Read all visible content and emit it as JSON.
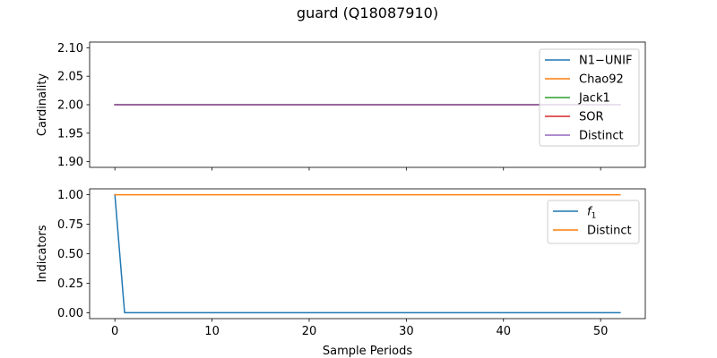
{
  "title": "guard (Q18087910)",
  "colors": {
    "blue": "#1f77b4",
    "orange": "#ff7f0e",
    "green": "#2ca02c",
    "red": "#d62728",
    "purple": "#9467bd"
  },
  "chart_data": [
    {
      "type": "line",
      "ylabel": "Cardinality",
      "xlabel": "",
      "xlim": [
        -2.6,
        54.6
      ],
      "ylim": [
        1.89,
        2.11
      ],
      "xticks": [
        0,
        10,
        20,
        30,
        40,
        50
      ],
      "xtick_labels_visible": false,
      "yticks": [
        1.9,
        1.95,
        2.0,
        2.05,
        2.1
      ],
      "ytick_labels": [
        "1.90",
        "1.95",
        "2.00",
        "2.05",
        "2.10"
      ],
      "legend_position": "top-right",
      "series": [
        {
          "name": "N1−UNIF",
          "color": "#1f77b4",
          "segments": [
            {
              "x": [
                0,
                52
              ],
              "y": [
                2.0,
                2.0
              ]
            }
          ]
        },
        {
          "name": "Chao92",
          "color": "#ff7f0e",
          "segments": [
            {
              "x": [
                0,
                52
              ],
              "y": [
                2.0,
                2.0
              ]
            }
          ]
        },
        {
          "name": "Jack1",
          "color": "#2ca02c",
          "segments": [
            {
              "x": [
                0,
                52
              ],
              "y": [
                2.0,
                2.0
              ]
            }
          ]
        },
        {
          "name": "SOR",
          "color": "#d62728",
          "segments": [
            {
              "x": [
                0,
                52
              ],
              "y": [
                2.0,
                2.0
              ]
            }
          ]
        },
        {
          "name": "Distinct",
          "color": "#9467bd",
          "segments": [
            {
              "x": [
                0,
                52
              ],
              "y": [
                2.0,
                2.0
              ]
            }
          ]
        }
      ]
    },
    {
      "type": "line",
      "ylabel": "Indicators",
      "xlabel": "Sample Periods",
      "xlim": [
        -2.6,
        54.6
      ],
      "ylim": [
        -0.05,
        1.05
      ],
      "xticks": [
        0,
        10,
        20,
        30,
        40,
        50
      ],
      "xtick_labels": [
        "0",
        "10",
        "20",
        "30",
        "40",
        "50"
      ],
      "yticks": [
        0.0,
        0.25,
        0.5,
        0.75,
        1.0
      ],
      "ytick_labels": [
        "0.00",
        "0.25",
        "0.50",
        "0.75",
        "1.00"
      ],
      "legend_position": "top-right",
      "series": [
        {
          "name": "f1",
          "name_base": "f",
          "name_sub": "1",
          "color": "#1f77b4",
          "segments": [
            {
              "x": [
                0,
                1,
                52
              ],
              "y": [
                1.0,
                0.0,
                0.0
              ]
            }
          ]
        },
        {
          "name": "Distinct",
          "color": "#ff7f0e",
          "segments": [
            {
              "x": [
                0,
                52
              ],
              "y": [
                1.0,
                1.0
              ]
            }
          ]
        }
      ]
    }
  ]
}
